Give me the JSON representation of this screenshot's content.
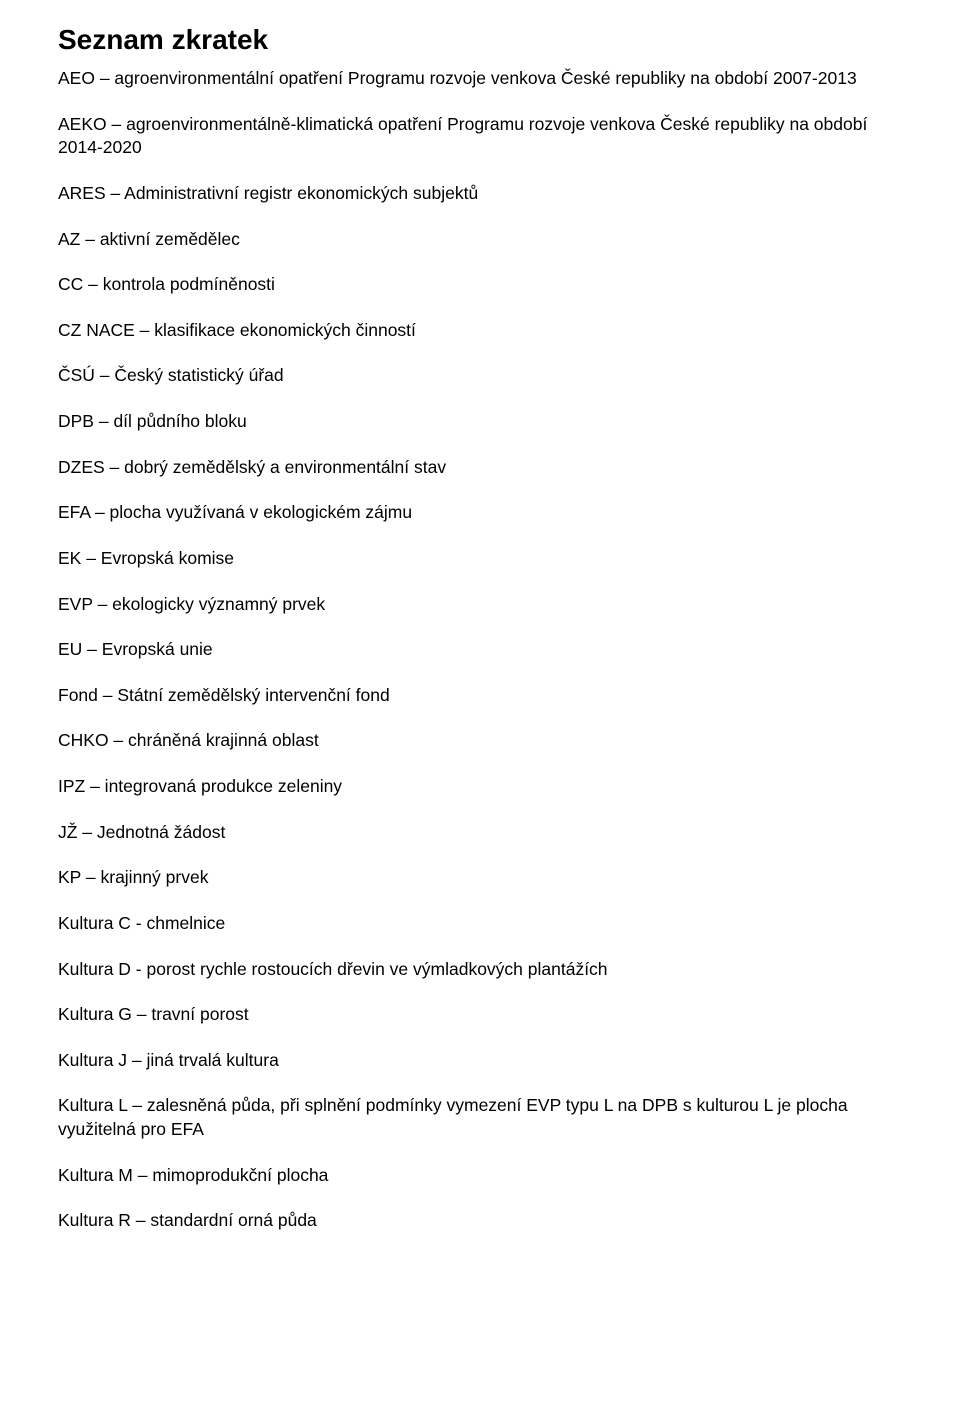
{
  "title": "Seznam zkratek",
  "entries": [
    "AEO – agroenvironmentální opatření Programu rozvoje venkova České republiky na období 2007-2013",
    "AEKO – agroenvironmentálně-klimatická opatření Programu rozvoje venkova České republiky na období 2014-2020",
    "ARES – Administrativní registr ekonomických subjektů",
    "AZ – aktivní zemědělec",
    "CC – kontrola podmíněnosti",
    "CZ NACE – klasifikace ekonomických činností",
    "ČSÚ – Český statistický úřad",
    "DPB – díl půdního bloku",
    "DZES – dobrý zemědělský a environmentální stav",
    "EFA – plocha využívaná v ekologickém zájmu",
    "EK – Evropská komise",
    "EVP – ekologicky významný prvek",
    "EU – Evropská unie",
    "Fond – Státní zemědělský intervenční fond",
    "CHKO – chráněná krajinná oblast",
    "IPZ – integrovaná produkce zeleniny",
    "JŽ – Jednotná žádost",
    "KP – krajinný prvek",
    "Kultura C - chmelnice",
    "Kultura D - porost rychle rostoucích dřevin ve výmladkových plantážích",
    "Kultura G – travní porost",
    "Kultura J – jiná trvalá kultura",
    "Kultura L – zalesněná půda, při splnění podmínky vymezení EVP typu L na DPB s kulturou L je plocha využitelná pro EFA",
    "Kultura M – mimoprodukční plocha",
    "Kultura R – standardní orná půda"
  ]
}
